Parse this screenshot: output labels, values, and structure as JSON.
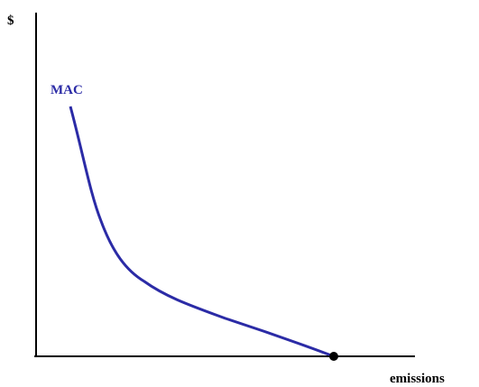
{
  "y_axis_label": "$",
  "x_axis_label": "emissions",
  "curve_label": "MAC"
}
